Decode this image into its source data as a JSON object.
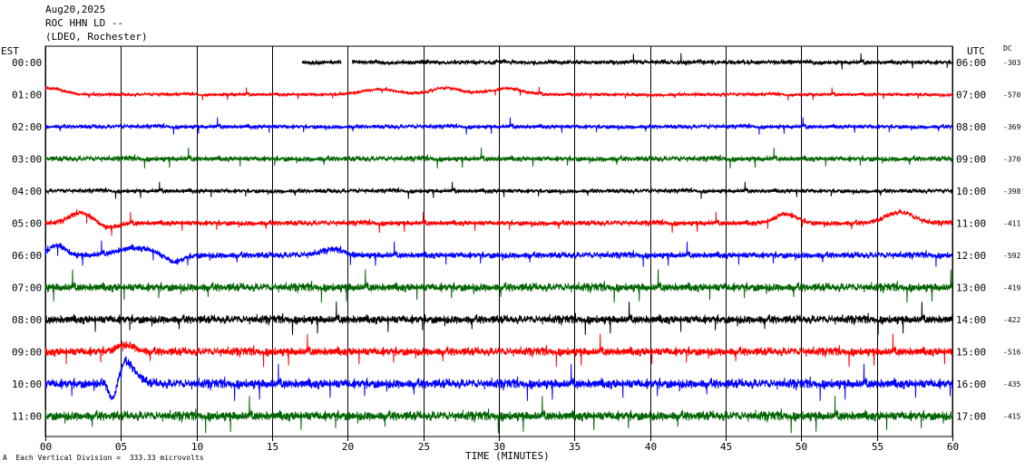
{
  "header": {
    "line1": "Aug20,2025",
    "line2": "ROC HHN LD --",
    "line3": "(LDEO, Rochester)"
  },
  "left_axis_title": "EST",
  "right_axis_title": "UTC",
  "dc_title": "DC",
  "footer": {
    "scale_note": "Each Vertical Division =  333.33 microvolts",
    "corner_mark": "A"
  },
  "chart_data": {
    "type": "line",
    "xlabel": "TIME (MINUTES)",
    "xlim": [
      0,
      60
    ],
    "x_ticks": [
      "00",
      "05",
      "10",
      "15",
      "20",
      "25",
      "30",
      "35",
      "40",
      "45",
      "50",
      "55",
      "60"
    ],
    "grid": true,
    "series": [
      {
        "est": "00:00",
        "utc": "06:00",
        "dc": "-303",
        "color": "#000000",
        "noise": 4,
        "start_min": 17,
        "gaps": [
          [
            2.6,
            3.3
          ]
        ],
        "bumps": []
      },
      {
        "est": "01:00",
        "utc": "07:00",
        "dc": "-570",
        "color": "#ff0000",
        "noise": 3,
        "start_min": 0,
        "gaps": [],
        "bumps": [
          [
            0.3,
            -7,
            1.0
          ],
          [
            22.0,
            -6,
            1.2
          ],
          [
            26.5,
            -7,
            1.0
          ],
          [
            30.5,
            -7,
            1.0
          ]
        ]
      },
      {
        "est": "02:00",
        "utc": "08:00",
        "dc": "-369",
        "color": "#0000ff",
        "noise": 4,
        "start_min": 0,
        "gaps": [],
        "bumps": []
      },
      {
        "est": "03:00",
        "utc": "09:00",
        "dc": "-370",
        "color": "#006400",
        "noise": 5,
        "start_min": 0,
        "gaps": [],
        "bumps": []
      },
      {
        "est": "04:00",
        "utc": "10:00",
        "dc": "-398",
        "color": "#000000",
        "noise": 4,
        "start_min": 0,
        "gaps": [],
        "bumps": []
      },
      {
        "est": "05:00",
        "utc": "11:00",
        "dc": "-411",
        "color": "#ff0000",
        "noise": 5,
        "start_min": 0,
        "gaps": [],
        "bumps": [
          [
            2.5,
            -12,
            0.8
          ],
          [
            4.0,
            6,
            0.7
          ],
          [
            49.0,
            -10,
            0.7
          ],
          [
            56.5,
            -12,
            0.9
          ]
        ]
      },
      {
        "est": "06:00",
        "utc": "12:00",
        "dc": "-592",
        "color": "#0000ff",
        "noise": 6,
        "start_min": 0,
        "gaps": [],
        "bumps": [
          [
            0.8,
            -12,
            0.5
          ],
          [
            6.0,
            -8,
            1.2
          ],
          [
            8.5,
            8,
            0.6
          ],
          [
            19.0,
            -6,
            0.8
          ]
        ]
      },
      {
        "est": "07:00",
        "utc": "13:00",
        "dc": "-419",
        "color": "#006400",
        "noise": 8,
        "start_min": 0,
        "gaps": [],
        "bumps": []
      },
      {
        "est": "08:00",
        "utc": "14:00",
        "dc": "-422",
        "color": "#000000",
        "noise": 8,
        "start_min": 0,
        "gaps": [],
        "bumps": []
      },
      {
        "est": "09:00",
        "utc": "15:00",
        "dc": "-516",
        "color": "#ff0000",
        "noise": 8,
        "start_min": 0,
        "gaps": [],
        "bumps": [
          [
            5.3,
            -8,
            0.6
          ]
        ]
      },
      {
        "est": "10:00",
        "utc": "16:00",
        "dc": "-435",
        "color": "#0000ff",
        "noise": 9,
        "start_min": 0,
        "gaps": [],
        "bumps": [
          [
            5.2,
            -25,
            0.7
          ],
          [
            4.5,
            30,
            0.3
          ]
        ]
      },
      {
        "est": "11:00",
        "utc": "17:00",
        "dc": "-415",
        "color": "#006400",
        "noise": 9,
        "start_min": 0,
        "gaps": [],
        "bumps": []
      }
    ]
  }
}
